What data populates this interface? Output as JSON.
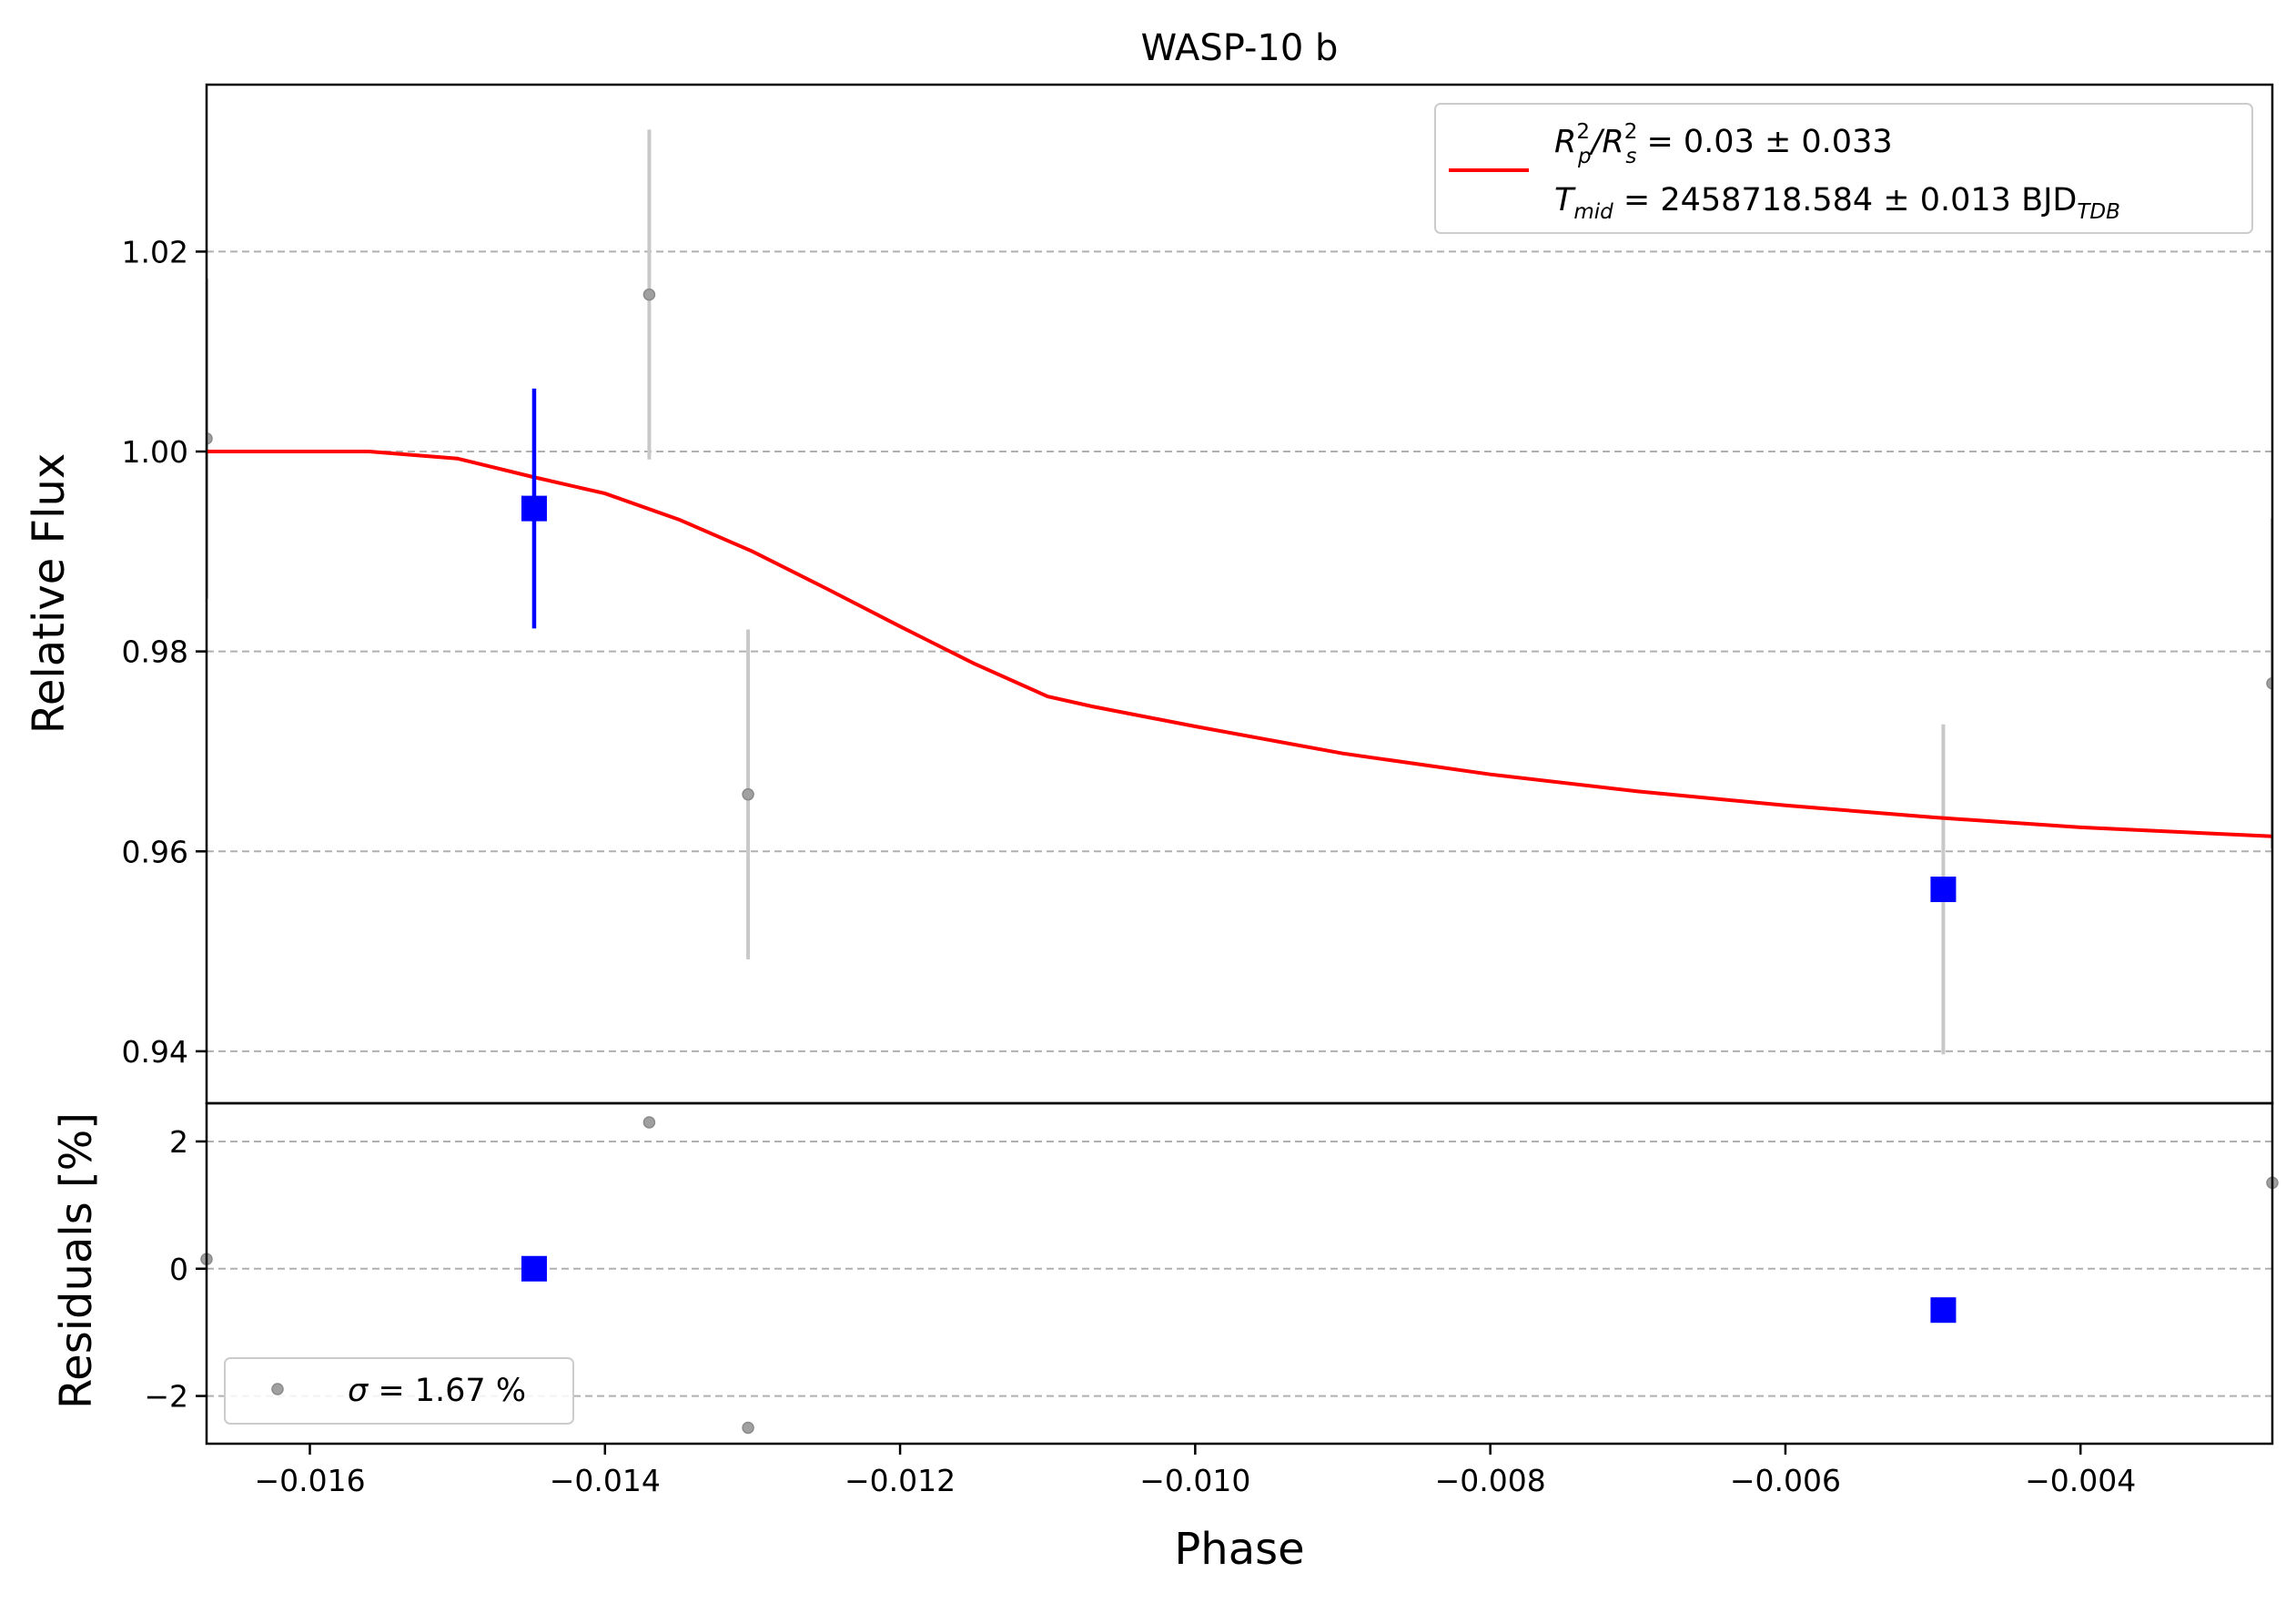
{
  "chart_data": {
    "type": "scatter",
    "title": "WASP-10 b",
    "xlabel": "Phase",
    "xlim": [
      -0.0167,
      -0.0027
    ],
    "xticks": [
      "−0.016",
      "−0.014",
      "−0.012",
      "−0.010",
      "−0.008",
      "−0.006",
      "−0.004"
    ],
    "xtick_values": [
      -0.016,
      -0.014,
      -0.012,
      -0.01,
      -0.008,
      -0.006,
      -0.004
    ],
    "grid": true,
    "colors": {
      "model": "#ff0000",
      "binned": "#0000ff",
      "raw": "#a0a0a0",
      "raw_err": "#c8c8c8"
    },
    "top_panel": {
      "ylabel": "Relative Flux",
      "ylim": [
        0.9348,
        1.0367
      ],
      "yticks": [
        "0.94",
        "0.96",
        "0.98",
        "1.00",
        "1.02"
      ],
      "ytick_values": [
        0.94,
        0.96,
        0.98,
        1.0,
        1.02
      ],
      "legend": {
        "placement": "top-right",
        "rp_label": "R",
        "rp_sup": "2",
        "rp_sub": "p",
        "slash": "/R",
        "rs_sup": "2",
        "rs_sub": "s",
        "rp_value": " = 0.03 ± 0.033",
        "tmid_label": "T",
        "tmid_sub": "mid",
        "tmid_value": " = 2458718.584 ± 0.013 BJD",
        "tmid_unit_sub": "TDB"
      },
      "model": {
        "name": "transit model",
        "x": [
          -0.0167,
          -0.0156,
          -0.015,
          -0.0145,
          -0.014,
          -0.0135,
          -0.013,
          -0.0125,
          -0.012,
          -0.0115,
          -0.011,
          -0.0107,
          -0.01,
          -0.009,
          -0.008,
          -0.007,
          -0.006,
          -0.005,
          -0.004,
          -0.0027
        ],
        "y": [
          1.0,
          1.0,
          0.9993,
          0.9975,
          0.9958,
          0.9932,
          0.99,
          0.9863,
          0.9825,
          0.9788,
          0.9755,
          0.9745,
          0.9725,
          0.9698,
          0.9677,
          0.966,
          0.9646,
          0.9634,
          0.9624,
          0.9615
        ]
      },
      "raw": [
        {
          "x": -0.0167,
          "y": 1.0013,
          "err": 0.016
        },
        {
          "x": -0.0137,
          "y": 1.0157,
          "err": 0.0165
        },
        {
          "x": -0.01303,
          "y": 0.9657,
          "err": 0.0165
        },
        {
          "x": -0.00493,
          "y": 0.9562,
          "err": 0.0165
        },
        {
          "x": -0.0027,
          "y": 0.9768,
          "err": 0.0165
        }
      ],
      "binned": [
        {
          "x": -0.01448,
          "y": 0.9943,
          "err": 0.012
        },
        {
          "x": -0.00493,
          "y": 0.9562,
          "err": 0.0
        }
      ]
    },
    "bottom_panel": {
      "ylabel": "Residuals [%]",
      "ylim": [
        -2.75,
        2.6
      ],
      "yticks": [
        "−2",
        "0",
        "2"
      ],
      "ytick_values": [
        -2,
        0,
        2
      ],
      "legend": {
        "placement": "bottom-left",
        "sigma_symbol": "σ",
        "sigma_value": " = 1.67 %"
      },
      "raw": [
        {
          "x": -0.0167,
          "y": 0.15
        },
        {
          "x": -0.0137,
          "y": 2.3
        },
        {
          "x": -0.01303,
          "y": -2.5
        },
        {
          "x": -0.0027,
          "y": 1.35
        }
      ],
      "binned": [
        {
          "x": -0.01448,
          "y": 0.0
        },
        {
          "x": -0.00493,
          "y": -0.65
        }
      ]
    }
  }
}
